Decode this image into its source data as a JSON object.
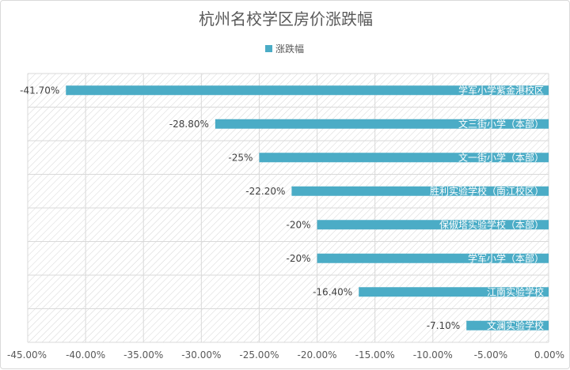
{
  "chart_data": {
    "type": "bar",
    "orientation": "horizontal",
    "title": "杭州名校学区房价涨跌幅",
    "legend": {
      "position": "top",
      "entries": [
        "涨跌幅"
      ]
    },
    "series": [
      {
        "name": "涨跌幅",
        "color": "#4bacc6",
        "values": [
          -41.7,
          -28.8,
          -25,
          -22.2,
          -20,
          -20,
          -16.4,
          -7.1
        ],
        "value_labels": [
          "-41.70%",
          "-28.80%",
          "-25%",
          "-22.20%",
          "-20%",
          "-20%",
          "-16.40%",
          "-7.10%"
        ]
      }
    ],
    "categories": [
      "学军小学紫金港校区",
      "文三街小学（本部）",
      "文一街小学（本部）",
      "胜利实验学校（南江校区）",
      "保俶塔实验学校（本部）",
      "学军小学（本部）",
      "江南实验学校",
      "文澜实验学校"
    ],
    "xlim": [
      -45,
      0
    ],
    "x_ticks": [
      -45,
      -40,
      -35,
      -30,
      -25,
      -20,
      -15,
      -10,
      -5,
      0
    ],
    "x_tick_labels": [
      "-45.00%",
      "-40.00%",
      "-35.00%",
      "-30.00%",
      "-25.00%",
      "-20.00%",
      "-15.00%",
      "-10.00%",
      "-5.00%",
      "0.00%"
    ],
    "grid": true,
    "band_pattern": "diagonal-hatch",
    "xlabel": "",
    "ylabel": ""
  }
}
